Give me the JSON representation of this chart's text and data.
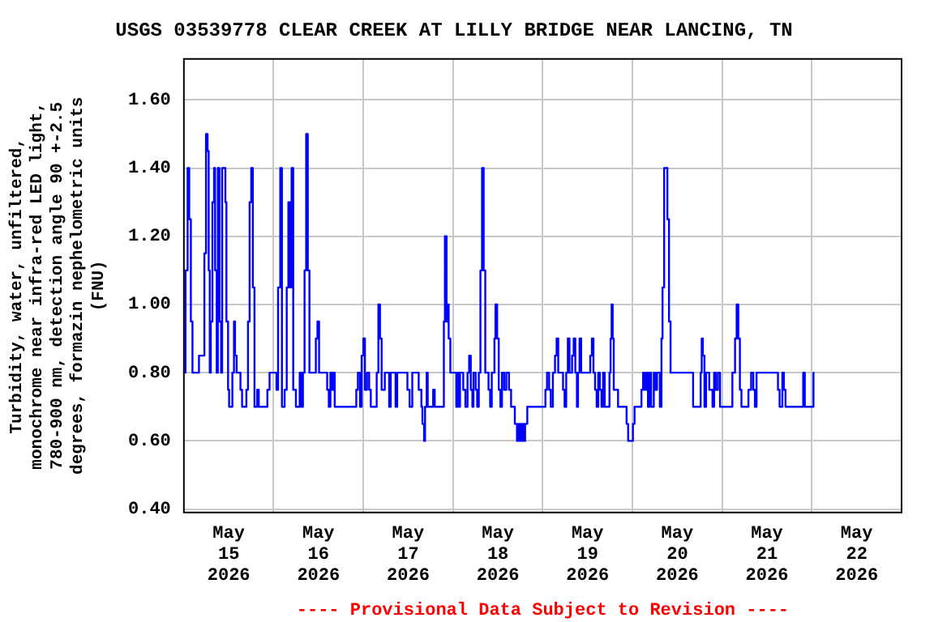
{
  "chart_data": {
    "type": "step",
    "title": "USGS 03539778 CLEAR CREEK AT LILLY BRIDGE NEAR LANCING, TN",
    "ylabel": "Turbidity, water, unfiltered, monochrome near infra-red LED light, 780-900 nm, detection angle 90 +-2.5 degrees, formazin nephelometric units (FNU)",
    "annotations": [
      "---- Provisional Data Subject to Revision ----"
    ],
    "xlim": [
      "2026-05-15T00:00",
      "2026-05-23T00:00"
    ],
    "xticks": [
      {
        "value": "2026-05-15T12:00",
        "label": "May 15 2026"
      },
      {
        "value": "2026-05-16T00:00",
        "label": null
      },
      {
        "value": "2026-05-16T12:00",
        "label": "May 16 2026"
      },
      {
        "value": "2026-05-17T00:00",
        "label": null
      },
      {
        "value": "2026-05-17T12:00",
        "label": "May 17 2026"
      },
      {
        "value": "2026-05-18T00:00",
        "label": null
      },
      {
        "value": "2026-05-18T12:00",
        "label": "May 18 2026"
      },
      {
        "value": "2026-05-19T00:00",
        "label": null
      },
      {
        "value": "2026-05-19T12:00",
        "label": "May 19 2026"
      },
      {
        "value": "2026-05-20T00:00",
        "label": null
      },
      {
        "value": "2026-05-20T12:00",
        "label": "May 20 2026"
      },
      {
        "value": "2026-05-21T00:00",
        "label": null
      },
      {
        "value": "2026-05-21T12:00",
        "label": "May 21 2026"
      },
      {
        "value": "2026-05-22T00:00",
        "label": null
      },
      {
        "value": "2026-05-22T12:00",
        "label": "May 22 2026"
      }
    ],
    "ylim": [
      0.39,
      1.72
    ],
    "yticks": [
      {
        "value": 0.4,
        "label": "0.40"
      },
      {
        "value": 0.6,
        "label": "0.60"
      },
      {
        "value": 0.8,
        "label": "0.80"
      },
      {
        "value": 1.0,
        "label": "1.00"
      },
      {
        "value": 1.2,
        "label": "1.20"
      },
      {
        "value": 1.4,
        "label": "1.40"
      },
      {
        "value": 1.6,
        "label": "1.60"
      }
    ],
    "grid": true,
    "legend": false,
    "marker": "none",
    "line_style": "solid",
    "series": [
      {
        "color": "#0000ff",
        "x": [
          "2026-05-15T00:00",
          "2026-05-15T00:26",
          "2026-05-15T01:00",
          "2026-05-15T01:26",
          "2026-05-15T01:52",
          "2026-05-15T02:18",
          "2026-05-15T04:02",
          "2026-05-15T05:29",
          "2026-05-15T05:55",
          "2026-05-15T06:20",
          "2026-05-15T06:38",
          "2026-05-15T06:55",
          "2026-05-15T07:12",
          "2026-05-15T07:38",
          "2026-05-15T08:04",
          "2026-05-15T08:21",
          "2026-05-15T08:47",
          "2026-05-15T09:05",
          "2026-05-15T09:31",
          "2026-05-15T09:57",
          "2026-05-15T10:14",
          "2026-05-15T11:06",
          "2026-05-15T11:23",
          "2026-05-15T11:49",
          "2026-05-15T12:06",
          "2026-05-15T12:58",
          "2026-05-15T13:24",
          "2026-05-15T13:41",
          "2026-05-15T14:07",
          "2026-05-15T15:08",
          "2026-05-15T15:34",
          "2026-05-15T16:43",
          "2026-05-15T17:09",
          "2026-05-15T17:35",
          "2026-05-15T18:01",
          "2026-05-15T18:27",
          "2026-05-15T18:53",
          "2026-05-15T19:36",
          "2026-05-15T20:02",
          "2026-05-15T22:20",
          "2026-05-15T22:55",
          "2026-05-16T00:46",
          "2026-05-16T01:12",
          "2026-05-16T01:47",
          "2026-05-16T02:14",
          "2026-05-16T02:57",
          "2026-05-16T03:31",
          "2026-05-16T03:57",
          "2026-05-16T04:23",
          "2026-05-16T04:49",
          "2026-05-16T05:15",
          "2026-05-16T05:58",
          "2026-05-16T06:59",
          "2026-05-16T07:25",
          "2026-05-16T07:51",
          "2026-05-16T08:17",
          "2026-05-16T08:43",
          "2026-05-16T09:09",
          "2026-05-16T09:35",
          "2026-05-16T11:18",
          "2026-05-16T11:44",
          "2026-05-16T12:10",
          "2026-05-16T14:20",
          "2026-05-16T14:46",
          "2026-05-16T15:12",
          "2026-05-16T15:29",
          "2026-05-16T15:55",
          "2026-05-16T16:21",
          "2026-05-16T22:07",
          "2026-05-16T22:33",
          "2026-05-16T23:07",
          "2026-05-16T23:33",
          "2026-05-17T00:00",
          "2026-05-17T00:26",
          "2026-05-17T00:59",
          "2026-05-17T01:34",
          "2026-05-17T02:00",
          "2026-05-17T03:35",
          "2026-05-17T04:02",
          "2026-05-17T04:28",
          "2026-05-17T04:54",
          "2026-05-17T05:45",
          "2026-05-17T06:55",
          "2026-05-17T07:20",
          "2026-05-17T08:38",
          "2026-05-17T09:04",
          "2026-05-17T11:48",
          "2026-05-17T12:23",
          "2026-05-17T13:06",
          "2026-05-17T14:49",
          "2026-05-17T15:32",
          "2026-05-17T15:49",
          "2026-05-17T16:15",
          "2026-05-17T16:31",
          "2026-05-17T16:57",
          "2026-05-17T17:14",
          "2026-05-17T18:41",
          "2026-05-17T19:06",
          "2026-05-17T21:33",
          "2026-05-17T21:50",
          "2026-05-17T22:16",
          "2026-05-17T22:33",
          "2026-05-17T22:50",
          "2026-05-17T23:17",
          "2026-05-18T00:52",
          "2026-05-18T01:09",
          "2026-05-18T01:35",
          "2026-05-18T01:52",
          "2026-05-18T02:44",
          "2026-05-18T03:19",
          "2026-05-18T03:53",
          "2026-05-18T04:19",
          "2026-05-18T04:45",
          "2026-05-18T05:11",
          "2026-05-18T05:28",
          "2026-05-18T06:03",
          "2026-05-18T06:28",
          "2026-05-18T06:54",
          "2026-05-18T07:20",
          "2026-05-18T07:46",
          "2026-05-18T08:12",
          "2026-05-18T08:38",
          "2026-05-18T09:30",
          "2026-05-18T09:56",
          "2026-05-18T10:22",
          "2026-05-18T11:05",
          "2026-05-18T11:22",
          "2026-05-18T11:48",
          "2026-05-18T12:14",
          "2026-05-18T12:40",
          "2026-05-18T13:06",
          "2026-05-18T13:40",
          "2026-05-18T14:15",
          "2026-05-18T14:58",
          "2026-05-18T15:32",
          "2026-05-18T16:32",
          "2026-05-18T17:07",
          "2026-05-18T17:33",
          "2026-05-18T17:59",
          "2026-05-18T18:25",
          "2026-05-18T18:51",
          "2026-05-18T19:17",
          "2026-05-18T19:52",
          "2026-05-19T00:43",
          "2026-05-19T01:09",
          "2026-05-19T01:43",
          "2026-05-19T02:09",
          "2026-05-19T02:43",
          "2026-05-19T03:17",
          "2026-05-19T03:43",
          "2026-05-19T04:09",
          "2026-05-19T05:26",
          "2026-05-19T05:51",
          "2026-05-19T06:17",
          "2026-05-19T06:43",
          "2026-05-19T07:09",
          "2026-05-19T07:51",
          "2026-05-19T08:17",
          "2026-05-19T08:43",
          "2026-05-19T09:09",
          "2026-05-19T09:26",
          "2026-05-19T09:51",
          "2026-05-19T10:17",
          "2026-05-19T12:43",
          "2026-05-19T13:09",
          "2026-05-19T13:34",
          "2026-05-19T14:00",
          "2026-05-19T14:26",
          "2026-05-19T14:51",
          "2026-05-19T15:17",
          "2026-05-19T15:43",
          "2026-05-19T16:09",
          "2026-05-19T16:34",
          "2026-05-19T17:51",
          "2026-05-19T18:09",
          "2026-05-19T18:26",
          "2026-05-19T18:43",
          "2026-05-19T19:00",
          "2026-05-19T20:09",
          "2026-05-19T22:26",
          "2026-05-19T22:51",
          "2026-05-20T00:08",
          "2026-05-20T00:34",
          "2026-05-20T02:25",
          "2026-05-20T02:51",
          "2026-05-20T03:17",
          "2026-05-20T03:43",
          "2026-05-20T04:09",
          "2026-05-20T04:34",
          "2026-05-20T05:00",
          "2026-05-20T05:43",
          "2026-05-20T06:09",
          "2026-05-20T06:34",
          "2026-05-20T07:20",
          "2026-05-20T07:46",
          "2026-05-20T08:03",
          "2026-05-20T08:29",
          "2026-05-20T09:21",
          "2026-05-20T09:47",
          "2026-05-20T10:12",
          "2026-05-20T16:14",
          "2026-05-20T18:15",
          "2026-05-20T18:32",
          "2026-05-20T18:50",
          "2026-05-20T19:16",
          "2026-05-20T19:42",
          "2026-05-20T20:33",
          "2026-05-20T21:25",
          "2026-05-20T21:51",
          "2026-05-20T22:17",
          "2026-05-20T22:51",
          "2026-05-20T23:26",
          "2026-05-21T02:44",
          "2026-05-21T03:27",
          "2026-05-21T03:53",
          "2026-05-21T04:19",
          "2026-05-21T04:45",
          "2026-05-21T05:10",
          "2026-05-21T07:02",
          "2026-05-21T07:45",
          "2026-05-21T08:20",
          "2026-05-21T08:46",
          "2026-05-21T09:12",
          "2026-05-21T14:56",
          "2026-05-21T15:22",
          "2026-05-21T16:06",
          "2026-05-21T16:31",
          "2026-05-21T16:57",
          "2026-05-21T21:41",
          "2026-05-21T22:07",
          "2026-05-22T00:26",
          "2026-05-22T00:40"
        ],
        "values": [
          0.8,
          1.1,
          1.4,
          1.25,
          0.95,
          0.8,
          0.85,
          1.15,
          1.5,
          1.45,
          1.1,
          0.8,
          0.95,
          1.3,
          1.4,
          1.1,
          0.8,
          1.4,
          0.95,
          0.8,
          1.4,
          1.3,
          0.95,
          0.75,
          0.7,
          0.8,
          0.95,
          0.85,
          0.8,
          0.75,
          0.7,
          0.75,
          0.95,
          1.3,
          1.4,
          1.05,
          0.7,
          0.75,
          0.7,
          0.75,
          0.8,
          0.75,
          1.05,
          1.4,
          0.7,
          0.75,
          1.05,
          1.3,
          1.05,
          1.4,
          0.75,
          0.7,
          0.8,
          0.7,
          0.8,
          1.1,
          1.5,
          1.1,
          0.8,
          0.9,
          0.95,
          0.8,
          0.75,
          0.7,
          0.8,
          0.75,
          0.8,
          0.7,
          0.75,
          0.8,
          0.7,
          0.85,
          0.9,
          0.75,
          0.8,
          0.75,
          0.7,
          0.8,
          1.0,
          0.9,
          0.75,
          0.8,
          0.7,
          0.8,
          0.7,
          0.8,
          0.75,
          0.7,
          0.8,
          0.75,
          0.7,
          0.65,
          0.6,
          0.7,
          0.8,
          0.7,
          0.75,
          0.7,
          0.95,
          1.2,
          0.95,
          1.0,
          0.9,
          0.8,
          0.7,
          0.8,
          0.7,
          0.8,
          0.75,
          0.7,
          0.8,
          0.85,
          0.75,
          0.7,
          0.8,
          0.75,
          0.7,
          0.8,
          1.1,
          1.4,
          1.1,
          0.8,
          0.75,
          0.7,
          0.8,
          0.9,
          1.0,
          0.9,
          0.75,
          0.7,
          0.8,
          0.75,
          0.8,
          0.75,
          0.7,
          0.65,
          0.6,
          0.65,
          0.6,
          0.65,
          0.6,
          0.65,
          0.7,
          0.75,
          0.8,
          0.75,
          0.7,
          0.8,
          0.85,
          0.9,
          0.8,
          0.75,
          0.7,
          0.8,
          0.9,
          0.8,
          0.85,
          0.9,
          0.8,
          0.7,
          0.8,
          0.9,
          0.8,
          0.85,
          0.9,
          0.8,
          0.75,
          0.7,
          0.8,
          0.75,
          0.7,
          0.8,
          0.7,
          0.8,
          0.9,
          1.0,
          0.9,
          0.75,
          0.7,
          0.65,
          0.6,
          0.65,
          0.7,
          0.75,
          0.8,
          0.75,
          0.8,
          0.7,
          0.8,
          0.7,
          0.8,
          0.75,
          0.8,
          0.7,
          0.9,
          1.05,
          1.4,
          1.25,
          0.95,
          0.8,
          0.7,
          0.8,
          0.9,
          0.85,
          0.7,
          0.8,
          0.75,
          0.7,
          0.8,
          0.75,
          0.8,
          0.7,
          0.8,
          0.9,
          1.0,
          0.9,
          0.75,
          0.7,
          0.75,
          0.8,
          0.75,
          0.7,
          0.8,
          0.75,
          0.7,
          0.8,
          0.75,
          0.7,
          0.8,
          0.7,
          0.8,
          0.8
        ]
      }
    ]
  }
}
